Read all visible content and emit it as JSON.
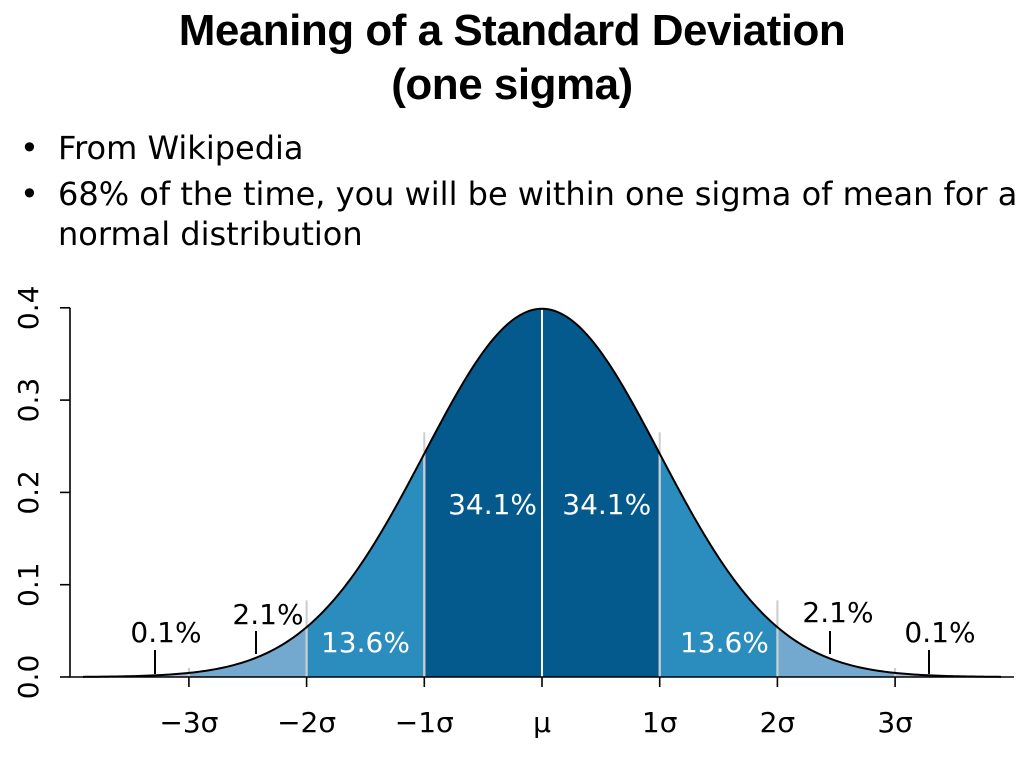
{
  "slide": {
    "title_line1": "Meaning of a Standard Deviation",
    "title_line2": "(one sigma)",
    "bullets": [
      "From Wikipedia",
      "68% of the time, you will be within one sigma of mean for a normal distribution"
    ]
  },
  "chart_data": {
    "type": "area",
    "distribution": "normal",
    "mean": 0,
    "sd": 1,
    "xlim": [
      -3.9,
      3.9
    ],
    "ylim": [
      0,
      0.4
    ],
    "yticks": [
      0.0,
      0.1,
      0.2,
      0.3,
      0.4
    ],
    "ytick_labels": [
      "0.0",
      "0.1",
      "0.2",
      "0.3",
      "0.4"
    ],
    "xticks": [
      -3,
      -2,
      -1,
      0,
      1,
      2,
      3
    ],
    "xtick_labels": [
      "−3σ",
      "−2σ",
      "−1σ",
      "μ",
      "1σ",
      "2σ",
      "3σ"
    ],
    "regions": [
      {
        "from": -3,
        "to": -2,
        "percent": 2.1,
        "label": "2.1%",
        "color": "#74a9cf"
      },
      {
        "from": -2,
        "to": -1,
        "percent": 13.6,
        "label": "13.6%",
        "color": "#2b8cbe"
      },
      {
        "from": -1,
        "to": 0,
        "percent": 34.1,
        "label": "34.1%",
        "color": "#045a8d"
      },
      {
        "from": 0,
        "to": 1,
        "percent": 34.1,
        "label": "34.1%",
        "color": "#045a8d"
      },
      {
        "from": 1,
        "to": 2,
        "percent": 13.6,
        "label": "13.6%",
        "color": "#2b8cbe"
      },
      {
        "from": 2,
        "to": 3,
        "percent": 2.1,
        "label": "2.1%",
        "color": "#74a9cf"
      }
    ],
    "tails": [
      {
        "side": "left",
        "label": "0.1%",
        "color": "#a6bddb"
      },
      {
        "side": "right",
        "label": "0.1%",
        "color": "#a6bddb"
      }
    ],
    "curve_color": "#000000"
  }
}
